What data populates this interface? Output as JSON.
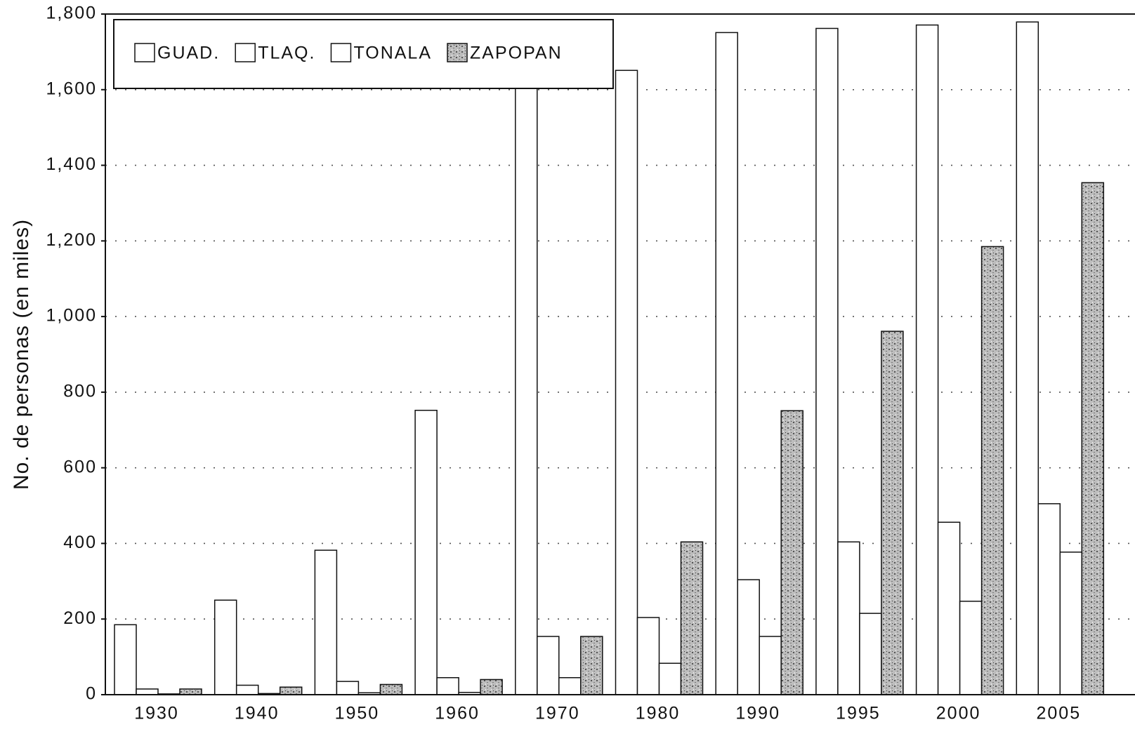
{
  "chart_data": {
    "type": "bar",
    "y_label": "No. de personas (en miles)",
    "categories": [
      "1930",
      "1940",
      "1950",
      "1960",
      "1970",
      "1980",
      "1990",
      "1995",
      "2000",
      "2005"
    ],
    "series": [
      {
        "name": "GUAD.",
        "color": "#ffffff",
        "values": [
          185,
          250,
          382,
          752,
          1640,
          1651,
          1751,
          1762,
          1771,
          1779
        ]
      },
      {
        "name": "TLAQ.",
        "color": "#ffffff",
        "values": [
          15,
          25,
          35,
          45,
          154,
          204,
          304,
          404,
          456,
          505
        ]
      },
      {
        "name": "TONALA",
        "color": "#ffffff",
        "values": [
          2,
          3,
          5,
          6,
          45,
          83,
          154,
          215,
          247,
          377
        ]
      },
      {
        "name": "ZAPOPAN",
        "color": "#9a9a9a",
        "pattern": true,
        "values": [
          15,
          20,
          27,
          40,
          154,
          404,
          751,
          961,
          1185,
          1354
        ]
      }
    ],
    "ylim": [
      0,
      1800
    ],
    "yticks": [
      0,
      200,
      400,
      600,
      800,
      {
        "value": 1000,
        "label": "1,000"
      },
      {
        "value": 1200,
        "label": "1,200"
      },
      {
        "value": 1400,
        "label": "1,400"
      },
      {
        "value": 1600,
        "label": "1,600"
      },
      {
        "value": 1800,
        "label": "1,800"
      }
    ],
    "grid": true,
    "legend": "top-left"
  }
}
